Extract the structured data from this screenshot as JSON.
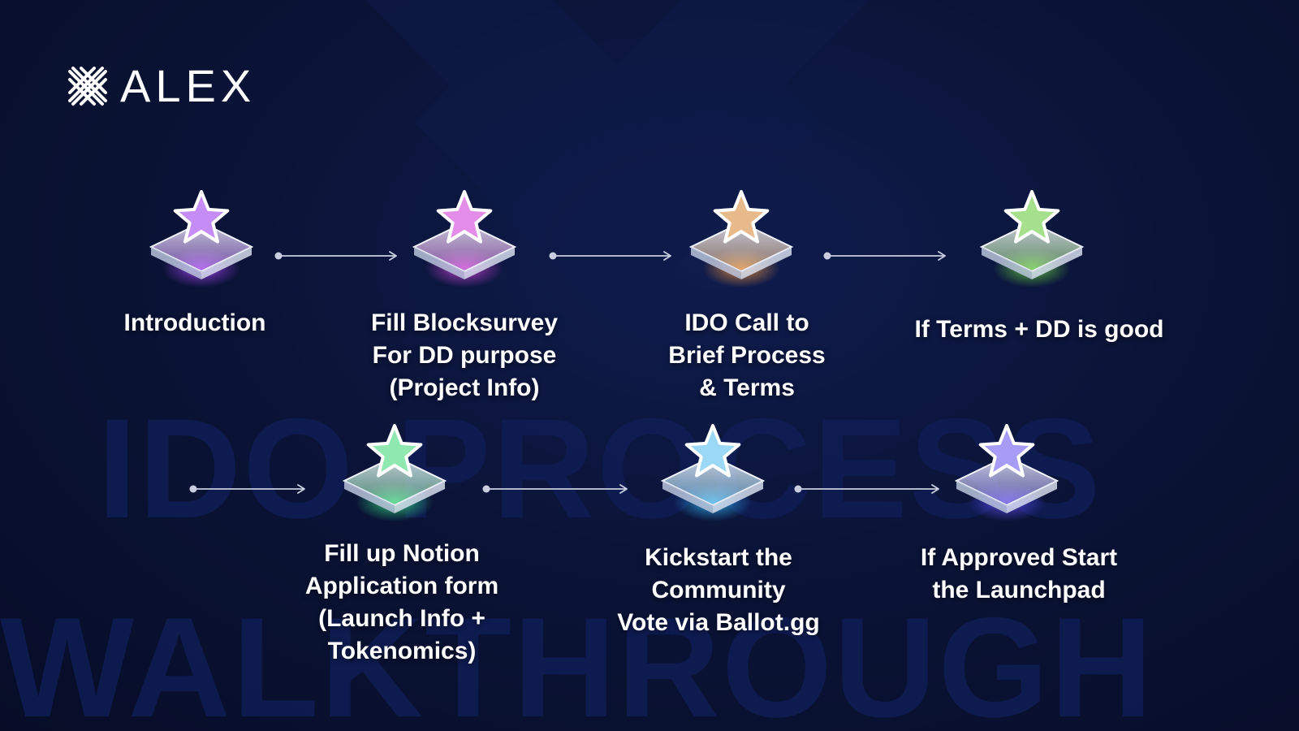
{
  "brand": {
    "logo_text": "ALEX",
    "logo_icon": "alex-x-logo-icon"
  },
  "background": {
    "watermark_line1": "IDO PROCESS",
    "watermark_line2": "WALKTHROUGH"
  },
  "colors": {
    "background": "#0a1132",
    "text": "#ffffff",
    "arrow": "#c9cfe0"
  },
  "steps": [
    {
      "label": "Introduction",
      "glow": "#a23ff0",
      "star": "#c58cf5"
    },
    {
      "label": "Fill Blocksurvey\nFor DD purpose\n(Project Info)",
      "glow": "#c43fd0",
      "star": "#e38ce8"
    },
    {
      "label": "IDO Call to\nBrief Process\n& Terms",
      "glow": "#e08a3a",
      "star": "#e8b98a"
    },
    {
      "label": "If Terms + DD is good",
      "glow": "#5fc43a",
      "star": "#a6e08c"
    },
    {
      "label": "Fill up Notion\nApplication form\n(Launch Info +\nTokenomics)",
      "glow": "#2fcf7a",
      "star": "#8fe8b0"
    },
    {
      "label": "Kickstart the\nCommunity\nVote via Ballot.gg",
      "glow": "#2fa8e8",
      "star": "#9bd8f5"
    },
    {
      "label": "If Approved Start\nthe Launchpad",
      "glow": "#5a47e8",
      "star": "#a69bf5"
    }
  ]
}
